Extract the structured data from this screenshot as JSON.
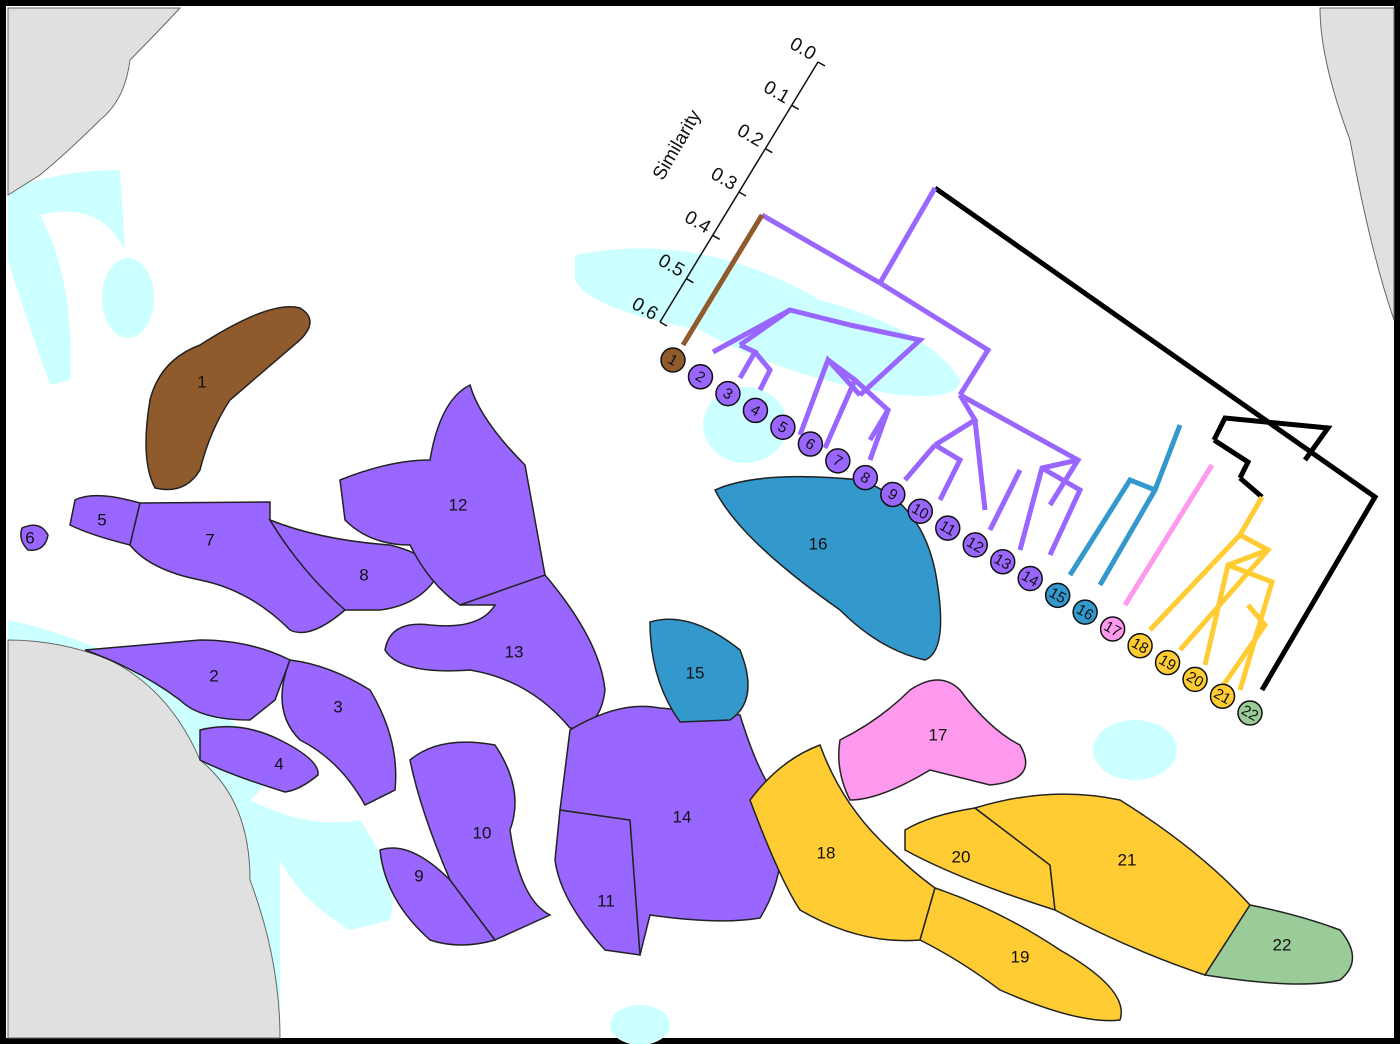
{
  "colors": {
    "brown": "#8f5a2c",
    "purple": "#9966ff",
    "blue": "#3399cc",
    "pink": "#ff99ee",
    "yellow": "#ffcc33",
    "green": "#99cc99",
    "shallow": "#ccffff",
    "land": "#e0e0e0"
  },
  "axis": {
    "title": "Similarity",
    "ticks": [
      "0.0",
      "0.1",
      "0.2",
      "0.3",
      "0.4",
      "0.5",
      "0.6"
    ]
  },
  "regions": [
    {
      "label": "1",
      "group": "brown"
    },
    {
      "label": "2",
      "group": "purple"
    },
    {
      "label": "3",
      "group": "purple"
    },
    {
      "label": "4",
      "group": "purple"
    },
    {
      "label": "5",
      "group": "purple"
    },
    {
      "label": "6",
      "group": "purple"
    },
    {
      "label": "7",
      "group": "purple"
    },
    {
      "label": "8",
      "group": "purple"
    },
    {
      "label": "9",
      "group": "purple"
    },
    {
      "label": "10",
      "group": "purple"
    },
    {
      "label": "11",
      "group": "purple"
    },
    {
      "label": "12",
      "group": "purple"
    },
    {
      "label": "13",
      "group": "purple"
    },
    {
      "label": "14",
      "group": "purple"
    },
    {
      "label": "15",
      "group": "blue"
    },
    {
      "label": "16",
      "group": "blue"
    },
    {
      "label": "17",
      "group": "pink"
    },
    {
      "label": "18",
      "group": "yellow"
    },
    {
      "label": "19",
      "group": "yellow"
    },
    {
      "label": "20",
      "group": "yellow"
    },
    {
      "label": "21",
      "group": "yellow"
    },
    {
      "label": "22",
      "group": "green"
    }
  ],
  "leaves": [
    "1",
    "2",
    "3",
    "4",
    "5",
    "6",
    "7",
    "8",
    "9",
    "10",
    "11",
    "12",
    "13",
    "14",
    "15",
    "16",
    "17",
    "18",
    "19",
    "20",
    "21",
    "22"
  ]
}
